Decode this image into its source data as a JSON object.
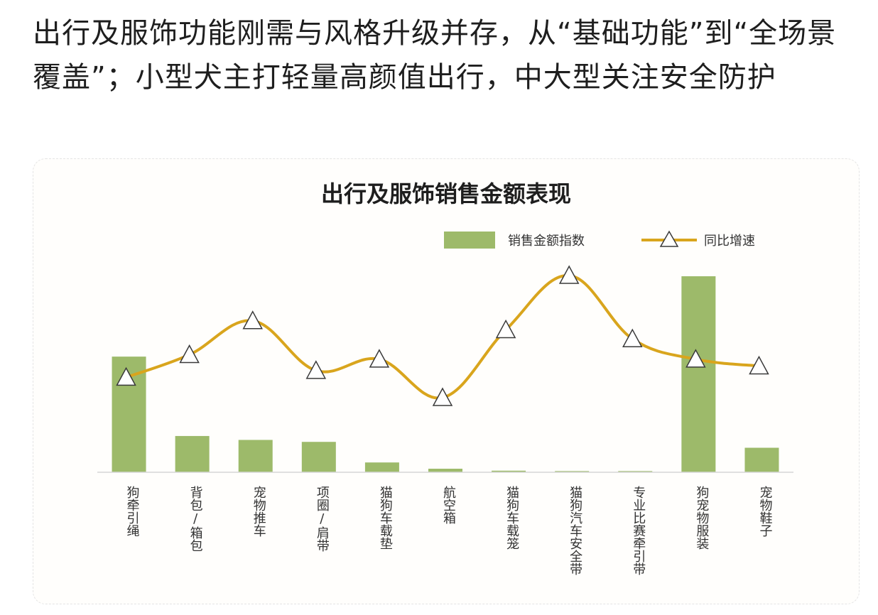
{
  "headline": "出行及服饰功能刚需与风格升级并存，从“基础功能”到“全场景覆盖”；小型犬主打轻量高颜值出行，中大型关注安全防护",
  "chart_data": {
    "type": "bar+line",
    "title": "出行及服饰销售金额表现",
    "legend": {
      "bar": "销售金额指数",
      "line": "同比增速",
      "position": "top-right"
    },
    "categories": [
      "狗牵引绳",
      "背包/箱包",
      "宠物推车",
      "项圈/肩带",
      "猫狗车载垫",
      "航空箱",
      "猫狗车载笼",
      "猫狗汽车安全带",
      "专业比赛牵引带",
      "狗宠物服装",
      "宠物鞋子"
    ],
    "series": [
      {
        "name": "销售金额指数",
        "type": "bar",
        "values": [
          59,
          18.5,
          16.5,
          15.5,
          5,
          1.8,
          0.8,
          0.6,
          0.6,
          100,
          12.5
        ]
      },
      {
        "name": "同比增速",
        "type": "line",
        "values": [
          52,
          62,
          77,
          55,
          60,
          43,
          73,
          97,
          69,
          60,
          57
        ]
      }
    ],
    "bar_ylim": [
      0,
      100
    ],
    "line_ylim": [
      0,
      100
    ],
    "colors": {
      "bar": "#9dba6a",
      "line": "#d9a51d",
      "marker_fill": "#ffffff",
      "marker_stroke": "#3a3a3a"
    },
    "grid": false
  }
}
